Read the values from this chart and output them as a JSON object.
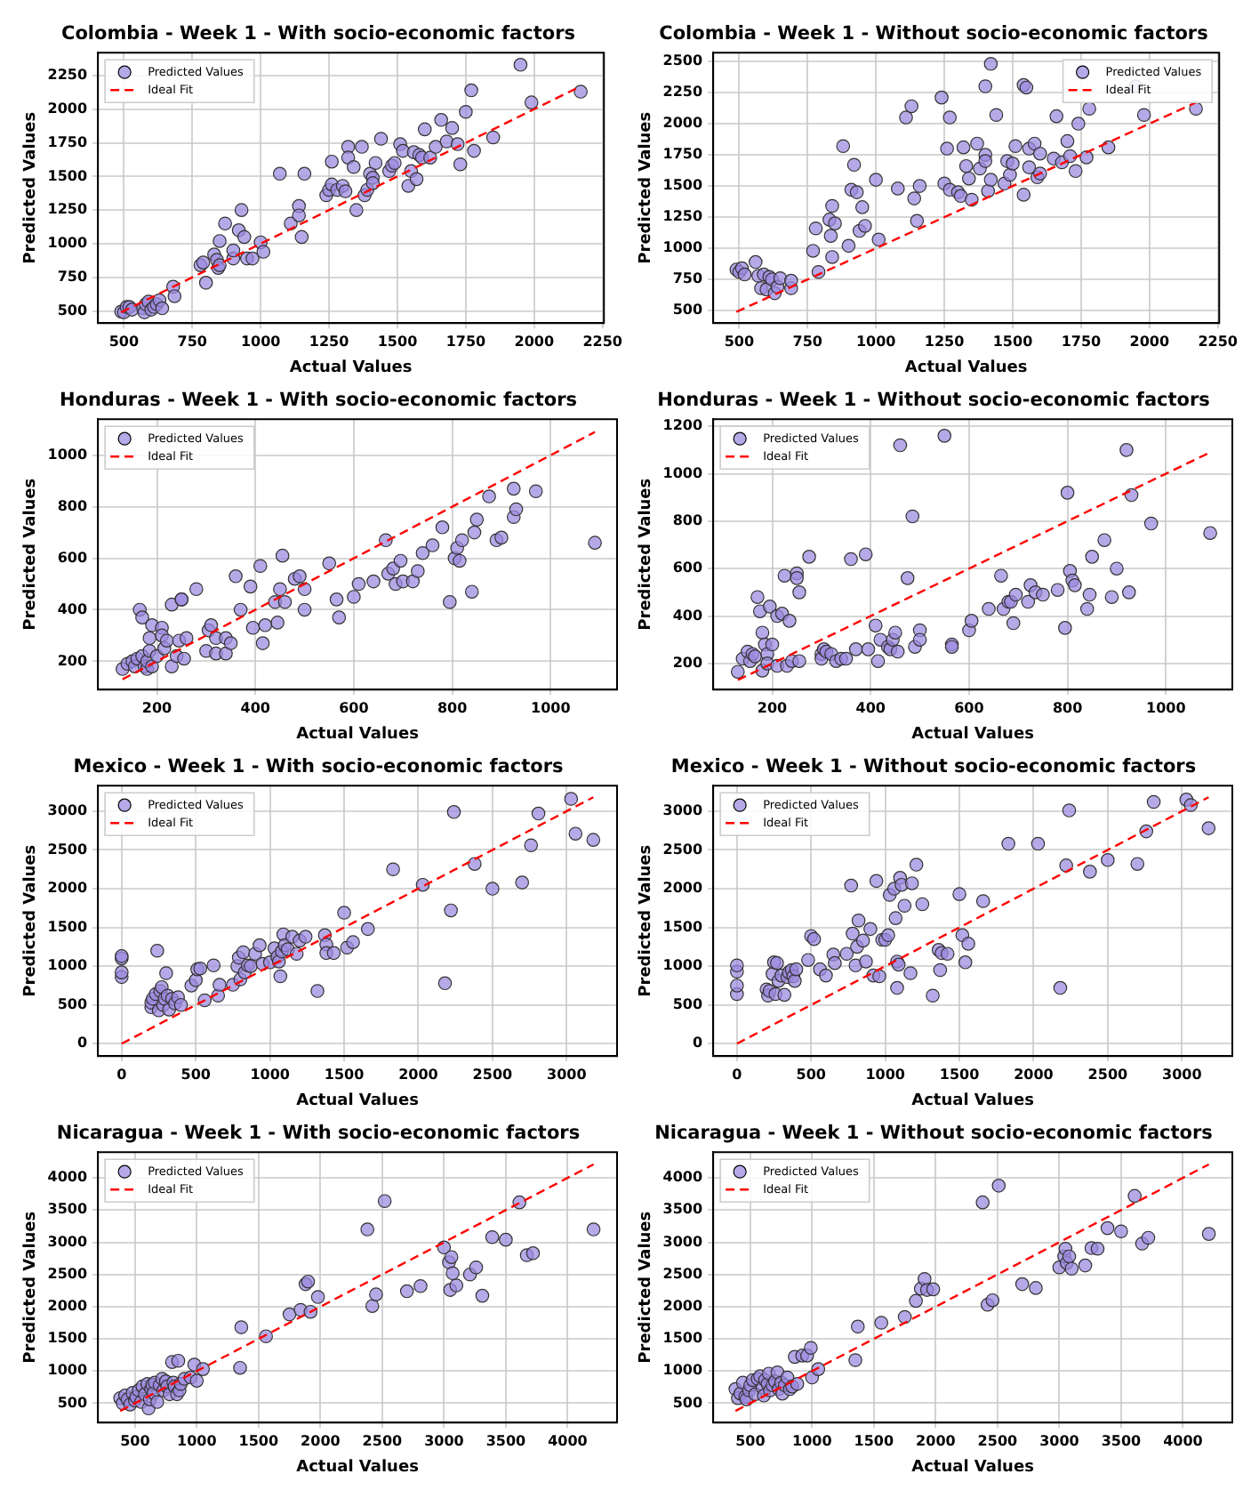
{
  "chart_data": [
    {
      "type": "scatter",
      "title": "Colombia - Week 1 - With socio-economic factors",
      "xlabel": "Actual Values",
      "ylabel": "Predicted Values",
      "xlim": [
        405,
        2255
      ],
      "xticks": [
        500,
        750,
        1000,
        1250,
        1500,
        1750,
        2000,
        2250
      ],
      "ylim": [
        410,
        2420
      ],
      "yticks": [
        500,
        750,
        1000,
        1250,
        1500,
        1750,
        2000,
        2250
      ],
      "grid": true,
      "legend": "top left",
      "marker": "circle",
      "series": [
        {
          "name": "Predicted Values",
          "color": "#9b8ae0",
          "x": [
            490,
            500,
            510,
            520,
            530,
            570,
            575,
            580,
            590,
            600,
            610,
            620,
            630,
            640,
            680,
            685,
            780,
            790,
            800,
            830,
            840,
            845,
            850,
            850,
            870,
            900,
            900,
            920,
            930,
            940,
            950,
            970,
            1000,
            1010,
            1070,
            1110,
            1140,
            1140,
            1150,
            1160,
            1240,
            1250,
            1260,
            1260,
            1280,
            1300,
            1310,
            1320,
            1320,
            1340,
            1350,
            1370,
            1380,
            1390,
            1400,
            1410,
            1410,
            1420,
            1440,
            1470,
            1480,
            1490,
            1510,
            1520,
            1540,
            1550,
            1560,
            1570,
            1580,
            1590,
            1600,
            1620,
            1640,
            1660,
            1680,
            1700,
            1720,
            1730,
            1750,
            1770,
            1780,
            1850,
            1950,
            1990,
            2170
          ],
          "values": [
            495,
            490,
            530,
            530,
            510,
            520,
            490,
            550,
            570,
            510,
            530,
            550,
            580,
            520,
            680,
            610,
            840,
            860,
            710,
            920,
            880,
            820,
            1020,
            840,
            1150,
            890,
            950,
            1100,
            1250,
            1050,
            890,
            890,
            1010,
            940,
            1520,
            1150,
            1280,
            1210,
            1050,
            1520,
            1360,
            1400,
            1610,
            1440,
            1400,
            1430,
            1390,
            1720,
            1640,
            1570,
            1250,
            1720,
            1360,
            1400,
            1520,
            1490,
            1450,
            1600,
            1780,
            1540,
            1580,
            1600,
            1740,
            1690,
            1430,
            1540,
            1680,
            1480,
            1660,
            1640,
            1850,
            1640,
            1720,
            1920,
            1760,
            1860,
            1740,
            1590,
            1980,
            2140,
            1690,
            1790,
            2330,
            2050,
            2130
          ]
        },
        {
          "name": "Ideal Fit",
          "type": "line",
          "color": "#ff0000",
          "line_style": "dashed",
          "marker": "none",
          "x": [
            490,
            2170
          ],
          "values": [
            490,
            2170
          ]
        }
      ]
    },
    {
      "type": "scatter",
      "title": "Colombia - Week 1 - Without socio-economic factors",
      "xlabel": "Actual Values",
      "ylabel": "Predicted Values",
      "xlim": [
        405,
        2255
      ],
      "xticks": [
        500,
        750,
        1000,
        1250,
        1500,
        1750,
        2000,
        2250
      ],
      "ylim": [
        400,
        2570
      ],
      "yticks": [
        500,
        750,
        1000,
        1250,
        1500,
        1750,
        2000,
        2250,
        2500
      ],
      "grid": true,
      "legend": "top right",
      "marker": "circle",
      "series": [
        {
          "name": "Predicted Values",
          "color": "#9b8ae0",
          "x": [
            490,
            500,
            510,
            520,
            560,
            570,
            580,
            590,
            600,
            610,
            620,
            630,
            640,
            650,
            690,
            690,
            770,
            780,
            790,
            830,
            835,
            840,
            840,
            850,
            880,
            900,
            910,
            920,
            930,
            940,
            950,
            960,
            1000,
            1010,
            1080,
            1110,
            1130,
            1140,
            1150,
            1160,
            1240,
            1250,
            1260,
            1270,
            1270,
            1300,
            1310,
            1320,
            1330,
            1340,
            1350,
            1370,
            1380,
            1400,
            1400,
            1400,
            1410,
            1420,
            1420,
            1440,
            1470,
            1480,
            1490,
            1500,
            1510,
            1540,
            1540,
            1550,
            1560,
            1560,
            1580,
            1590,
            1600,
            1600,
            1650,
            1660,
            1680,
            1700,
            1710,
            1730,
            1740,
            1770,
            1780,
            1850,
            1950,
            1980,
            2170
          ],
          "values": [
            830,
            810,
            840,
            790,
            890,
            780,
            680,
            790,
            670,
            770,
            750,
            640,
            690,
            760,
            680,
            740,
            980,
            1160,
            810,
            1230,
            1100,
            1340,
            930,
            1200,
            1820,
            1020,
            1470,
            1670,
            1450,
            1140,
            1330,
            1180,
            1550,
            1070,
            1480,
            2050,
            2140,
            1400,
            1220,
            1500,
            2210,
            1520,
            1800,
            2050,
            1470,
            1450,
            1420,
            1810,
            1660,
            1560,
            1390,
            1840,
            1640,
            2300,
            1750,
            1700,
            1460,
            1550,
            2480,
            2070,
            1520,
            1700,
            1590,
            1680,
            1820,
            1430,
            2310,
            2290,
            1800,
            1650,
            1840,
            1570,
            1600,
            1760,
            1720,
            2060,
            1690,
            1860,
            1740,
            1620,
            2000,
            1730,
            2120,
            1810,
            2300,
            2070,
            2120
          ]
        },
        {
          "name": "Ideal Fit",
          "type": "line",
          "color": "#ff0000",
          "line_style": "dashed",
          "marker": "none",
          "x": [
            490,
            2170
          ],
          "values": [
            490,
            2170
          ]
        }
      ]
    },
    {
      "type": "scatter",
      "title": "Honduras - Week 1 - With socio-economic factors",
      "xlabel": "Actual Values",
      "ylabel": "Predicted Values",
      "xlim": [
        80,
        1135
      ],
      "xticks": [
        200,
        400,
        600,
        800,
        1000
      ],
      "ylim": [
        90,
        1140
      ],
      "yticks": [
        200,
        400,
        600,
        800,
        1000
      ],
      "grid": true,
      "legend": "top left",
      "marker": "circle",
      "series": [
        {
          "name": "Predicted Values",
          "color": "#9b8ae0",
          "x": [
            130,
            140,
            150,
            155,
            160,
            165,
            170,
            170,
            175,
            180,
            180,
            185,
            185,
            190,
            190,
            200,
            210,
            210,
            215,
            220,
            230,
            230,
            240,
            245,
            250,
            250,
            255,
            260,
            280,
            300,
            305,
            310,
            320,
            320,
            340,
            340,
            350,
            360,
            370,
            390,
            395,
            410,
            415,
            420,
            440,
            445,
            450,
            455,
            460,
            480,
            490,
            500,
            500,
            550,
            565,
            570,
            600,
            610,
            640,
            665,
            670,
            680,
            685,
            695,
            700,
            720,
            730,
            740,
            760,
            780,
            795,
            805,
            810,
            815,
            820,
            840,
            845,
            850,
            875,
            890,
            900,
            925,
            930,
            970,
            1090,
            925
          ],
          "values": [
            170,
            190,
            200,
            180,
            210,
            400,
            220,
            370,
            180,
            170,
            200,
            290,
            240,
            180,
            340,
            220,
            330,
            300,
            250,
            280,
            420,
            180,
            220,
            280,
            440,
            440,
            210,
            290,
            480,
            240,
            320,
            340,
            230,
            290,
            230,
            290,
            270,
            530,
            400,
            490,
            330,
            570,
            270,
            340,
            430,
            350,
            480,
            610,
            430,
            520,
            530,
            400,
            480,
            580,
            440,
            370,
            450,
            500,
            510,
            670,
            540,
            560,
            500,
            590,
            510,
            510,
            550,
            620,
            650,
            720,
            430,
            600,
            640,
            590,
            670,
            470,
            700,
            750,
            840,
            670,
            680,
            760,
            790,
            860,
            660,
            870
          ]
        },
        {
          "name": "Ideal Fit",
          "type": "line",
          "color": "#ff0000",
          "line_style": "dashed",
          "marker": "none",
          "x": [
            130,
            1090
          ],
          "values": [
            130,
            1090
          ]
        }
      ]
    },
    {
      "type": "scatter",
      "title": "Honduras - Week 1 - Without socio-economic factors",
      "xlabel": "Actual Values",
      "ylabel": "Predicted Values",
      "xlim": [
        80,
        1135
      ],
      "xticks": [
        200,
        400,
        600,
        800,
        1000
      ],
      "ylim": [
        90,
        1230
      ],
      "yticks": [
        200,
        400,
        600,
        800,
        1000,
        1200
      ],
      "grid": true,
      "legend": "top left",
      "marker": "circle",
      "series": [
        {
          "name": "Predicted Values",
          "color": "#9b8ae0",
          "x": [
            130,
            140,
            150,
            155,
            160,
            165,
            170,
            175,
            180,
            180,
            185,
            190,
            190,
            195,
            200,
            210,
            210,
            220,
            225,
            230,
            235,
            240,
            250,
            250,
            255,
            255,
            275,
            300,
            300,
            305,
            310,
            320,
            330,
            340,
            350,
            360,
            370,
            390,
            395,
            410,
            415,
            420,
            435,
            440,
            445,
            450,
            455,
            460,
            475,
            485,
            490,
            500,
            500,
            550,
            565,
            565,
            600,
            605,
            640,
            665,
            670,
            680,
            685,
            690,
            695,
            720,
            725,
            735,
            750,
            780,
            795,
            800,
            805,
            810,
            815,
            840,
            845,
            850,
            875,
            890,
            900,
            920,
            925,
            930,
            970,
            1090
          ],
          "values": [
            165,
            220,
            250,
            210,
            240,
            230,
            480,
            420,
            170,
            330,
            280,
            240,
            200,
            440,
            280,
            190,
            400,
            410,
            570,
            190,
            380,
            210,
            580,
            560,
            500,
            210,
            650,
            240,
            220,
            260,
            250,
            240,
            210,
            220,
            220,
            640,
            260,
            660,
            260,
            360,
            210,
            300,
            270,
            260,
            300,
            330,
            250,
            1120,
            560,
            820,
            270,
            340,
            300,
            1160,
            280,
            270,
            340,
            380,
            430,
            570,
            430,
            460,
            460,
            370,
            490,
            460,
            530,
            500,
            490,
            510,
            350,
            920,
            590,
            550,
            530,
            430,
            490,
            650,
            720,
            480,
            600,
            1100,
            500,
            910,
            790,
            750
          ]
        },
        {
          "name": "Ideal Fit",
          "type": "line",
          "color": "#ff0000",
          "line_style": "dashed",
          "marker": "none",
          "x": [
            130,
            1090
          ],
          "values": [
            130,
            1090
          ]
        }
      ]
    },
    {
      "type": "scatter",
      "title": "Mexico - Week 1 - With socio-economic factors",
      "xlabel": "Actual Values",
      "ylabel": "Predicted Values",
      "xlim": [
        -160,
        3340
      ],
      "xticks": [
        0,
        500,
        1000,
        1500,
        2000,
        2500,
        3000
      ],
      "ylim": [
        -160,
        3330
      ],
      "yticks": [
        0,
        500,
        1000,
        1500,
        2000,
        2500,
        3000
      ],
      "grid": true,
      "legend": "top left",
      "marker": "circle",
      "series": [
        {
          "name": "Predicted Values",
          "color": "#9b8ae0",
          "x": [
            0,
            0,
            0,
            0,
            200,
            200,
            210,
            230,
            240,
            250,
            260,
            270,
            280,
            290,
            300,
            310,
            320,
            340,
            360,
            380,
            400,
            470,
            500,
            510,
            530,
            560,
            620,
            650,
            660,
            750,
            780,
            790,
            800,
            820,
            830,
            850,
            870,
            900,
            930,
            950,
            1000,
            1030,
            1050,
            1060,
            1070,
            1080,
            1090,
            1100,
            1120,
            1150,
            1180,
            1200,
            1240,
            1320,
            1370,
            1380,
            1380,
            1430,
            1500,
            1520,
            1560,
            1660,
            1830,
            2030,
            2180,
            2220,
            2240,
            2380,
            2500,
            2700,
            2760,
            2810,
            3030,
            3060,
            3180
          ],
          "values": [
            860,
            920,
            1100,
            1130,
            470,
            530,
            580,
            640,
            1200,
            430,
            680,
            730,
            500,
            580,
            910,
            620,
            440,
            580,
            520,
            600,
            500,
            750,
            820,
            960,
            970,
            560,
            1010,
            620,
            760,
            760,
            1000,
            1110,
            830,
            1180,
            920,
            1010,
            1000,
            1160,
            1270,
            1030,
            1050,
            1230,
            1120,
            1060,
            870,
            1190,
            1410,
            1270,
            1220,
            1380,
            1160,
            1330,
            1380,
            680,
            1400,
            1280,
            1170,
            1170,
            1690,
            1240,
            1310,
            1480,
            2250,
            2050,
            780,
            1720,
            2990,
            2320,
            2000,
            2080,
            2560,
            2970,
            3160,
            2710,
            2630
          ]
        },
        {
          "name": "Ideal Fit",
          "type": "line",
          "color": "#ff0000",
          "line_style": "dashed",
          "marker": "none",
          "x": [
            0,
            3180
          ],
          "values": [
            0,
            3180
          ]
        }
      ]
    },
    {
      "type": "scatter",
      "title": "Mexico - Week 1 - Without socio-economic factors",
      "xlabel": "Actual Values",
      "ylabel": "Predicted Values",
      "xlim": [
        -160,
        3340
      ],
      "xticks": [
        0,
        500,
        1000,
        1500,
        2000,
        2500,
        3000
      ],
      "ylim": [
        -160,
        3330
      ],
      "yticks": [
        0,
        500,
        1000,
        1500,
        2000,
        2500,
        3000
      ],
      "grid": true,
      "legend": "top left",
      "marker": "circle",
      "series": [
        {
          "name": "Predicted Values",
          "color": "#9b8ae0",
          "x": [
            0,
            0,
            0,
            0,
            200,
            210,
            220,
            240,
            250,
            260,
            270,
            280,
            300,
            320,
            340,
            350,
            370,
            380,
            390,
            400,
            480,
            500,
            520,
            560,
            600,
            650,
            660,
            740,
            770,
            780,
            800,
            810,
            820,
            850,
            870,
            900,
            920,
            940,
            960,
            980,
            1000,
            1020,
            1030,
            1060,
            1070,
            1080,
            1080,
            1090,
            1100,
            1110,
            1130,
            1170,
            1180,
            1210,
            1250,
            1320,
            1360,
            1370,
            1380,
            1420,
            1500,
            1520,
            1540,
            1560,
            1660,
            1830,
            2030,
            2180,
            2220,
            2240,
            2380,
            2500,
            2700,
            2760,
            2810,
            3030,
            3060,
            3180
          ],
          "values": [
            640,
            750,
            930,
            1010,
            700,
            620,
            680,
            900,
            1050,
            640,
            1040,
            810,
            880,
            630,
            860,
            920,
            950,
            870,
            810,
            960,
            1080,
            1390,
            1350,
            960,
            880,
            1150,
            1040,
            1160,
            2040,
            1420,
            1010,
            1250,
            1590,
            1330,
            1060,
            1480,
            880,
            2100,
            870,
            1340,
            1340,
            1400,
            1920,
            2000,
            1620,
            1060,
            720,
            1020,
            2140,
            2050,
            1780,
            910,
            2070,
            2310,
            1800,
            620,
            1210,
            950,
            1170,
            1160,
            1930,
            1400,
            1050,
            1290,
            1840,
            2580,
            2580,
            720,
            2300,
            3010,
            2220,
            2370,
            2320,
            2740,
            3120,
            3150,
            3080,
            2780
          ]
        },
        {
          "name": "Ideal Fit",
          "type": "line",
          "color": "#ff0000",
          "line_style": "dashed",
          "marker": "none",
          "x": [
            0,
            3180
          ],
          "values": [
            0,
            3180
          ]
        }
      ]
    },
    {
      "type": "scatter",
      "title": "Nicaragua - Week 1 - With socio-economic factors",
      "xlabel": "Actual Values",
      "ylabel": "Predicted Values",
      "xlim": [
        200,
        4400
      ],
      "xticks": [
        500,
        1000,
        1500,
        2000,
        2500,
        3000,
        3500,
        4000
      ],
      "ylim": [
        200,
        4400
      ],
      "yticks": [
        500,
        1000,
        1500,
        2000,
        2500,
        3000,
        3500,
        4000
      ],
      "grid": true,
      "legend": "top left",
      "marker": "circle",
      "series": [
        {
          "name": "Predicted Values",
          "color": "#9b8ae0",
          "x": [
            380,
            400,
            420,
            440,
            460,
            480,
            500,
            510,
            530,
            550,
            560,
            580,
            600,
            610,
            620,
            630,
            640,
            650,
            660,
            680,
            700,
            720,
            730,
            750,
            760,
            780,
            800,
            810,
            820,
            840,
            850,
            860,
            870,
            900,
            950,
            980,
            1000,
            1050,
            1350,
            1360,
            1560,
            1750,
            1840,
            1880,
            1900,
            1920,
            1980,
            2380,
            2420,
            2450,
            2520,
            2700,
            2810,
            3000,
            3040,
            3050,
            3060,
            3070,
            3100,
            3210,
            3260,
            3310,
            3390,
            3500,
            3610,
            3670,
            3720,
            4210
          ],
          "values": [
            580,
            500,
            620,
            560,
            480,
            660,
            540,
            600,
            700,
            520,
            760,
            640,
            800,
            420,
            560,
            720,
            790,
            660,
            820,
            520,
            780,
            880,
            700,
            840,
            760,
            640,
            1140,
            820,
            760,
            640,
            1160,
            700,
            800,
            880,
            900,
            1100,
            850,
            1030,
            1050,
            1680,
            1540,
            1880,
            1950,
            2350,
            2390,
            1920,
            2150,
            3200,
            2010,
            2190,
            3640,
            2240,
            2320,
            2920,
            2690,
            2260,
            2770,
            2520,
            2330,
            2500,
            2610,
            2170,
            3080,
            3040,
            3620,
            2800,
            2830,
            3200
          ]
        },
        {
          "name": "Ideal Fit",
          "type": "line",
          "color": "#ff0000",
          "line_style": "dashed",
          "marker": "none",
          "x": [
            380,
            4210
          ],
          "values": [
            380,
            4210
          ]
        }
      ]
    },
    {
      "type": "scatter",
      "title": "Nicaragua - Week 1 - Without socio-economic factors",
      "xlabel": "Actual Values",
      "ylabel": "Predicted Values",
      "xlim": [
        200,
        4400
      ],
      "xticks": [
        500,
        1000,
        1500,
        2000,
        2500,
        3000,
        3500,
        4000
      ],
      "ylim": [
        200,
        4400
      ],
      "yticks": [
        500,
        1000,
        1500,
        2000,
        2500,
        3000,
        3500,
        4000
      ],
      "grid": true,
      "legend": "top left",
      "marker": "circle",
      "series": [
        {
          "name": "Predicted Values",
          "color": "#9b8ae0",
          "x": [
            380,
            400,
            420,
            440,
            460,
            470,
            490,
            500,
            520,
            540,
            560,
            580,
            600,
            610,
            620,
            640,
            650,
            660,
            680,
            700,
            720,
            730,
            750,
            760,
            780,
            800,
            820,
            840,
            860,
            880,
            920,
            960,
            990,
            1000,
            1050,
            1350,
            1370,
            1560,
            1750,
            1840,
            1880,
            1910,
            1930,
            1980,
            2380,
            2420,
            2460,
            2510,
            2700,
            2810,
            3000,
            3040,
            3050,
            3060,
            3080,
            3100,
            3210,
            3260,
            3310,
            3390,
            3500,
            3610,
            3670,
            3720,
            4210
          ],
          "values": [
            720,
            580,
            650,
            820,
            600,
            560,
            700,
            780,
            860,
            640,
            880,
            920,
            740,
            620,
            860,
            800,
            960,
            700,
            780,
            840,
            980,
            720,
            820,
            650,
            780,
            900,
            720,
            760,
            1220,
            800,
            1240,
            1240,
            1360,
            900,
            1030,
            1170,
            1690,
            1750,
            1840,
            2090,
            2280,
            2430,
            2260,
            2270,
            3620,
            2030,
            2100,
            3880,
            2350,
            2290,
            2610,
            2780,
            2900,
            2680,
            2780,
            2590,
            2640,
            2910,
            2900,
            3220,
            3170,
            3720,
            2980,
            3070,
            3130
          ]
        },
        {
          "name": "Ideal Fit",
          "type": "line",
          "color": "#ff0000",
          "line_style": "dashed",
          "marker": "none",
          "x": [
            380,
            4210
          ],
          "values": [
            380,
            4210
          ]
        }
      ]
    }
  ]
}
